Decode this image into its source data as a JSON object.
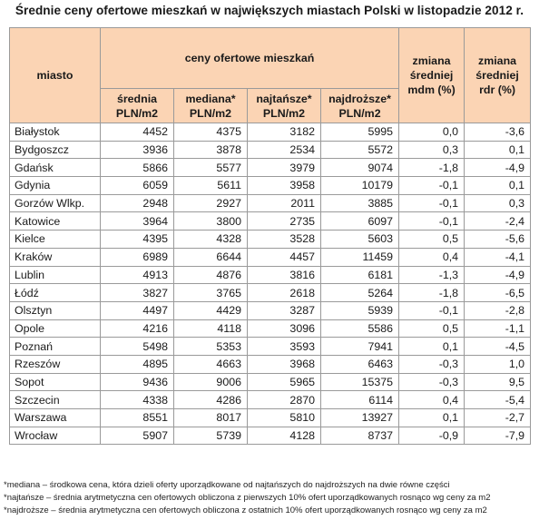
{
  "title": "Średnie ceny ofertowe mieszkań w największych miastach Polski w listopadzie 2012 r.",
  "header": {
    "city": "miasto",
    "group": "ceny ofertowe mieszkań",
    "change_mdm": "zmiana średniej mdm (%)",
    "change_rdr": "zmiana średniej rdr (%)",
    "sub": [
      "średnia PLN/m2",
      "mediana* PLN/m2",
      "najtańsze* PLN/m2",
      "najdroższe* PLN/m2"
    ]
  },
  "rows": [
    {
      "city": "Białystok",
      "avg": "4452",
      "median": "4375",
      "cheapest": "3182",
      "priciest": "5995",
      "mdm": "0,0",
      "rdr": "-3,6"
    },
    {
      "city": "Bydgoszcz",
      "avg": "3936",
      "median": "3878",
      "cheapest": "2534",
      "priciest": "5572",
      "mdm": "0,3",
      "rdr": "0,1"
    },
    {
      "city": "Gdańsk",
      "avg": "5866",
      "median": "5577",
      "cheapest": "3979",
      "priciest": "9074",
      "mdm": "-1,8",
      "rdr": "-4,9"
    },
    {
      "city": "Gdynia",
      "avg": "6059",
      "median": "5611",
      "cheapest": "3958",
      "priciest": "10179",
      "mdm": "-0,1",
      "rdr": "0,1"
    },
    {
      "city": "Gorzów Wlkp.",
      "avg": "2948",
      "median": "2927",
      "cheapest": "2011",
      "priciest": "3885",
      "mdm": "-0,1",
      "rdr": "0,3"
    },
    {
      "city": "Katowice",
      "avg": "3964",
      "median": "3800",
      "cheapest": "2735",
      "priciest": "6097",
      "mdm": "-0,1",
      "rdr": "-2,4"
    },
    {
      "city": "Kielce",
      "avg": "4395",
      "median": "4328",
      "cheapest": "3528",
      "priciest": "5603",
      "mdm": "0,5",
      "rdr": "-5,6"
    },
    {
      "city": "Kraków",
      "avg": "6989",
      "median": "6644",
      "cheapest": "4457",
      "priciest": "11459",
      "mdm": "0,4",
      "rdr": "-4,1"
    },
    {
      "city": "Lublin",
      "avg": "4913",
      "median": "4876",
      "cheapest": "3816",
      "priciest": "6181",
      "mdm": "-1,3",
      "rdr": "-4,9"
    },
    {
      "city": "Łódź",
      "avg": "3827",
      "median": "3765",
      "cheapest": "2618",
      "priciest": "5264",
      "mdm": "-1,8",
      "rdr": "-6,5"
    },
    {
      "city": "Olsztyn",
      "avg": "4497",
      "median": "4429",
      "cheapest": "3287",
      "priciest": "5939",
      "mdm": "-0,1",
      "rdr": "-2,8"
    },
    {
      "city": "Opole",
      "avg": "4216",
      "median": "4118",
      "cheapest": "3096",
      "priciest": "5586",
      "mdm": "0,5",
      "rdr": "-1,1"
    },
    {
      "city": "Poznań",
      "avg": "5498",
      "median": "5353",
      "cheapest": "3593",
      "priciest": "7941",
      "mdm": "0,1",
      "rdr": "-4,5"
    },
    {
      "city": "Rzeszów",
      "avg": "4895",
      "median": "4663",
      "cheapest": "3968",
      "priciest": "6463",
      "mdm": "-0,3",
      "rdr": "1,0"
    },
    {
      "city": "Sopot",
      "avg": "9436",
      "median": "9006",
      "cheapest": "5965",
      "priciest": "15375",
      "mdm": "-0,3",
      "rdr": "9,5"
    },
    {
      "city": "Szczecin",
      "avg": "4338",
      "median": "4286",
      "cheapest": "2870",
      "priciest": "6114",
      "mdm": "0,4",
      "rdr": "-5,4"
    },
    {
      "city": "Warszawa",
      "avg": "8551",
      "median": "8017",
      "cheapest": "5810",
      "priciest": "13927",
      "mdm": "0,1",
      "rdr": "-2,7"
    },
    {
      "city": "Wrocław",
      "avg": "5907",
      "median": "5739",
      "cheapest": "4128",
      "priciest": "8737",
      "mdm": "-0,9",
      "rdr": "-7,9"
    }
  ],
  "footnotes": [
    "*mediana – środkowa cena, która dzieli oferty uporządkowane od najtańszych do najdroższych na dwie równe części",
    "*najtańsze – średnia arytmetyczna cen ofertowych obliczona z pierwszych 10% ofert uporządkowanych rosnąco wg ceny za m2",
    "*najdroższe – średnia arytmetyczna cen ofertowych obliczona z ostatnich 10% ofert uporządkowanych rosnąco wg ceny za m2"
  ],
  "colors": {
    "header_bg": "#fbd4b4",
    "border": "#9a9a9a"
  }
}
